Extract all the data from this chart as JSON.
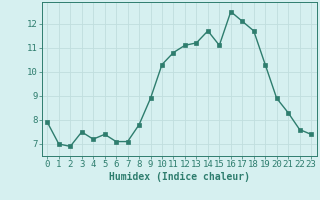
{
  "x": [
    0,
    1,
    2,
    3,
    4,
    5,
    6,
    7,
    8,
    9,
    10,
    11,
    12,
    13,
    14,
    15,
    16,
    17,
    18,
    19,
    20,
    21,
    22,
    23
  ],
  "y": [
    7.9,
    7.0,
    6.9,
    7.5,
    7.2,
    7.4,
    7.1,
    7.1,
    7.8,
    8.9,
    10.3,
    10.8,
    11.1,
    11.2,
    11.7,
    11.1,
    12.5,
    12.1,
    11.7,
    10.3,
    8.9,
    8.3,
    7.6,
    7.4
  ],
  "xlabel": "Humidex (Indice chaleur)",
  "line_color": "#2e7d6e",
  "bg_color": "#d6f0f0",
  "grid_color": "#c0dede",
  "tick_color": "#2e7d6e",
  "label_color": "#2e7d6e",
  "ylim": [
    6.5,
    12.9
  ],
  "xlim": [
    -0.5,
    23.5
  ],
  "yticks": [
    7,
    8,
    9,
    10,
    11,
    12
  ],
  "xticks": [
    0,
    1,
    2,
    3,
    4,
    5,
    6,
    7,
    8,
    9,
    10,
    11,
    12,
    13,
    14,
    15,
    16,
    17,
    18,
    19,
    20,
    21,
    22,
    23
  ],
  "marker": "s",
  "markersize": 2.5,
  "linewidth": 1.0,
  "xlabel_fontsize": 7,
  "tick_fontsize": 6.5
}
